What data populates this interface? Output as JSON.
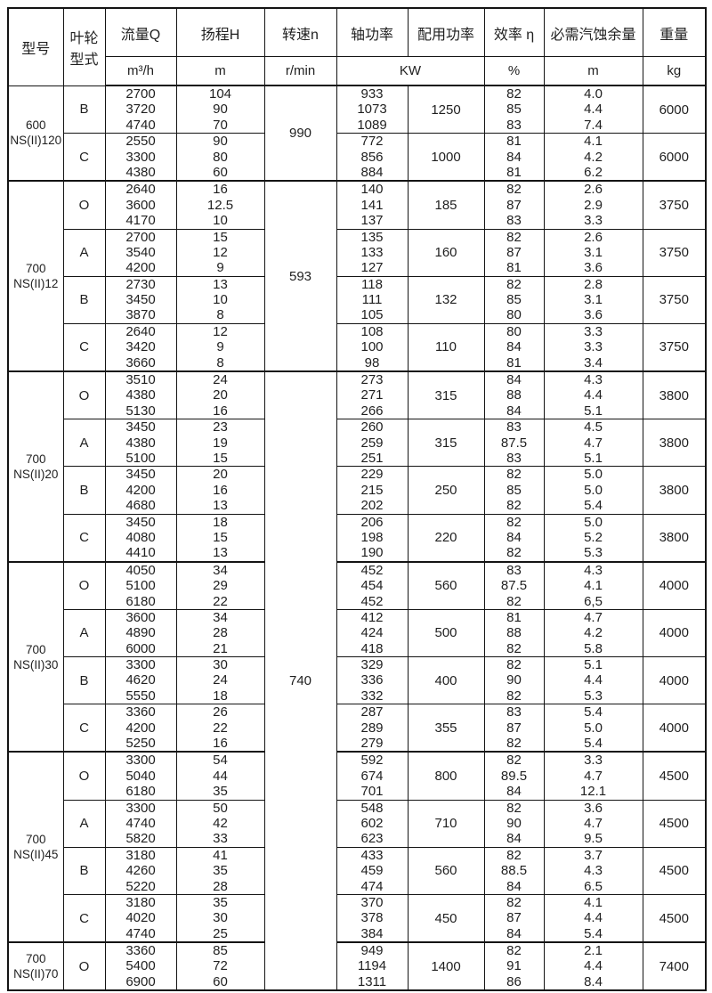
{
  "table": {
    "header": {
      "model_label": "型号",
      "impeller_line1": "叶轮",
      "impeller_line2": "型式",
      "flow_label": "流量Q",
      "flow_unit": "m³/h",
      "head_label": "扬程H",
      "head_unit": "m",
      "speed_label": "转速n",
      "speed_unit": "r/min",
      "shaft_power_label": "轴功率",
      "matched_power_label": "配用功率",
      "power_unit": "KW",
      "efficiency_label": "效率 η",
      "efficiency_unit": "%",
      "npsh_label": "必需汽蚀余量",
      "npsh_unit": "m",
      "weight_label": "重量",
      "weight_unit": "kg"
    },
    "speed_cells": [
      {
        "value": "990",
        "row_span": 2
      },
      {
        "value": "593",
        "row_span": 4
      },
      {
        "value": "740",
        "row_span": 13
      }
    ],
    "sections": [
      {
        "model": [
          "600",
          "NS(II)120"
        ],
        "rows": [
          {
            "impeller": "B",
            "flow": [
              "2700",
              "3720",
              "4740"
            ],
            "head": [
              "104",
              "90",
              "70"
            ],
            "shaft_power": [
              "933",
              "1073",
              "1089"
            ],
            "matched_power": "1250",
            "efficiency": [
              "82",
              "85",
              "83"
            ],
            "npsh": [
              "4.0",
              "4.4",
              "7.4"
            ],
            "weight": "6000"
          },
          {
            "impeller": "C",
            "flow": [
              "2550",
              "3300",
              "4380"
            ],
            "head": [
              "90",
              "80",
              "60"
            ],
            "shaft_power": [
              "772",
              "856",
              "884"
            ],
            "matched_power": "1000",
            "efficiency": [
              "81",
              "84",
              "81"
            ],
            "npsh": [
              "4.1",
              "4.2",
              "6.2"
            ],
            "weight": "6000"
          }
        ]
      },
      {
        "model": [
          "700",
          "NS(II)12"
        ],
        "rows": [
          {
            "impeller": "O",
            "flow": [
              "2640",
              "3600",
              "4170"
            ],
            "head": [
              "16",
              "12.5",
              "10"
            ],
            "shaft_power": [
              "140",
              "141",
              "137"
            ],
            "matched_power": "185",
            "efficiency": [
              "82",
              "87",
              "83"
            ],
            "npsh": [
              "2.6",
              "2.9",
              "3.3"
            ],
            "weight": "3750"
          },
          {
            "impeller": "A",
            "flow": [
              "2700",
              "3540",
              "4200"
            ],
            "head": [
              "15",
              "12",
              "9"
            ],
            "shaft_power": [
              "135",
              "133",
              "127"
            ],
            "matched_power": "160",
            "efficiency": [
              "82",
              "87",
              "81"
            ],
            "npsh": [
              "2.6",
              "3.1",
              "3.6"
            ],
            "weight": "3750"
          },
          {
            "impeller": "B",
            "flow": [
              "2730",
              "3450",
              "3870"
            ],
            "head": [
              "13",
              "10",
              "8"
            ],
            "shaft_power": [
              "118",
              "111",
              "105"
            ],
            "matched_power": "132",
            "efficiency": [
              "82",
              "85",
              "80"
            ],
            "npsh": [
              "2.8",
              "3.1",
              "3.6"
            ],
            "weight": "3750"
          },
          {
            "impeller": "C",
            "flow": [
              "2640",
              "3420",
              "3660"
            ],
            "head": [
              "12",
              "9",
              "8"
            ],
            "shaft_power": [
              "108",
              "100",
              "98"
            ],
            "matched_power": "110",
            "efficiency": [
              "80",
              "84",
              "81"
            ],
            "npsh": [
              "3.3",
              "3.3",
              "3.4"
            ],
            "weight": "3750"
          }
        ]
      },
      {
        "model": [
          "700",
          "NS(II)20"
        ],
        "rows": [
          {
            "impeller": "O",
            "flow": [
              "3510",
              "4380",
              "5130"
            ],
            "head": [
              "24",
              "20",
              "16"
            ],
            "shaft_power": [
              "273",
              "271",
              "266"
            ],
            "matched_power": "315",
            "efficiency": [
              "84",
              "88",
              "84"
            ],
            "npsh": [
              "4.3",
              "4.4",
              "5.1"
            ],
            "weight": "3800"
          },
          {
            "impeller": "A",
            "flow": [
              "3450",
              "4380",
              "5100"
            ],
            "head": [
              "23",
              "19",
              "15"
            ],
            "shaft_power": [
              "260",
              "259",
              "251"
            ],
            "matched_power": "315",
            "efficiency": [
              "83",
              "87.5",
              "83"
            ],
            "npsh": [
              "4.5",
              "4.7",
              "5.1"
            ],
            "weight": "3800"
          },
          {
            "impeller": "B",
            "flow": [
              "3450",
              "4200",
              "4680"
            ],
            "head": [
              "20",
              "16",
              "13"
            ],
            "shaft_power": [
              "229",
              "215",
              "202"
            ],
            "matched_power": "250",
            "efficiency": [
              "82",
              "85",
              "82"
            ],
            "npsh": [
              "5.0",
              "5.0",
              "5.4"
            ],
            "weight": "3800"
          },
          {
            "impeller": "C",
            "flow": [
              "3450",
              "4080",
              "4410"
            ],
            "head": [
              "18",
              "15",
              "13"
            ],
            "shaft_power": [
              "206",
              "198",
              "190"
            ],
            "matched_power": "220",
            "efficiency": [
              "82",
              "84",
              "82"
            ],
            "npsh": [
              "5.0",
              "5.2",
              "5.3"
            ],
            "weight": "3800"
          }
        ]
      },
      {
        "model": [
          "700",
          "NS(II)30"
        ],
        "rows": [
          {
            "impeller": "O",
            "flow": [
              "4050",
              "5100",
              "6180"
            ],
            "head": [
              "34",
              "29",
              "22"
            ],
            "shaft_power": [
              "452",
              "454",
              "452"
            ],
            "matched_power": "560",
            "efficiency": [
              "83",
              "87.5",
              "82"
            ],
            "npsh": [
              "4.3",
              "4.1",
              "6,5"
            ],
            "weight": "4000"
          },
          {
            "impeller": "A",
            "flow": [
              "3600",
              "4890",
              "6000"
            ],
            "head": [
              "34",
              "28",
              "21"
            ],
            "shaft_power": [
              "412",
              "424",
              "418"
            ],
            "matched_power": "500",
            "efficiency": [
              "81",
              "88",
              "82"
            ],
            "npsh": [
              "4.7",
              "4.2",
              "5.8"
            ],
            "weight": "4000"
          },
          {
            "impeller": "B",
            "flow": [
              "3300",
              "4620",
              "5550"
            ],
            "head": [
              "30",
              "24",
              "18"
            ],
            "shaft_power": [
              "329",
              "336",
              "332"
            ],
            "matched_power": "400",
            "efficiency": [
              "82",
              "90",
              "82"
            ],
            "npsh": [
              "5.1",
              "4.4",
              "5.3"
            ],
            "weight": "4000"
          },
          {
            "impeller": "C",
            "flow": [
              "3360",
              "4200",
              "5250"
            ],
            "head": [
              "26",
              "22",
              "16"
            ],
            "shaft_power": [
              "287",
              "289",
              "279"
            ],
            "matched_power": "355",
            "efficiency": [
              "83",
              "87",
              "82"
            ],
            "npsh": [
              "5.4",
              "5.0",
              "5.4"
            ],
            "weight": "4000"
          }
        ]
      },
      {
        "model": [
          "700",
          "NS(II)45"
        ],
        "rows": [
          {
            "impeller": "O",
            "flow": [
              "3300",
              "5040",
              "6180"
            ],
            "head": [
              "54",
              "44",
              "35"
            ],
            "shaft_power": [
              "592",
              "674",
              "701"
            ],
            "matched_power": "800",
            "efficiency": [
              "82",
              "89.5",
              "84"
            ],
            "npsh": [
              "3.3",
              "4.7",
              "12.1"
            ],
            "weight": "4500"
          },
          {
            "impeller": "A",
            "flow": [
              "3300",
              "4740",
              "5820"
            ],
            "head": [
              "50",
              "42",
              "33"
            ],
            "shaft_power": [
              "548",
              "602",
              "623"
            ],
            "matched_power": "710",
            "efficiency": [
              "82",
              "90",
              "84"
            ],
            "npsh": [
              "3.6",
              "4.7",
              "9.5"
            ],
            "weight": "4500"
          },
          {
            "impeller": "B",
            "flow": [
              "3180",
              "4260",
              "5220"
            ],
            "head": [
              "41",
              "35",
              "28"
            ],
            "shaft_power": [
              "433",
              "459",
              "474"
            ],
            "matched_power": "560",
            "efficiency": [
              "82",
              "88.5",
              "84"
            ],
            "npsh": [
              "3.7",
              "4.3",
              "6.5"
            ],
            "weight": "4500"
          },
          {
            "impeller": "C",
            "flow": [
              "3180",
              "4020",
              "4740"
            ],
            "head": [
              "35",
              "30",
              "25"
            ],
            "shaft_power": [
              "370",
              "378",
              "384"
            ],
            "matched_power": "450",
            "efficiency": [
              "82",
              "87",
              "84"
            ],
            "npsh": [
              "4.1",
              "4.4",
              "5.4"
            ],
            "weight": "4500"
          }
        ]
      },
      {
        "model": [
          "700",
          "NS(II)70"
        ],
        "rows": [
          {
            "impeller": "O",
            "flow": [
              "3360",
              "5400",
              "6900"
            ],
            "head": [
              "85",
              "72",
              "60"
            ],
            "shaft_power": [
              "949",
              "1194",
              "1311"
            ],
            "matched_power": "1400",
            "efficiency": [
              "82",
              "91",
              "86"
            ],
            "npsh": [
              "2.1",
              "4.4",
              "8.4"
            ],
            "weight": "7400"
          }
        ]
      }
    ]
  }
}
